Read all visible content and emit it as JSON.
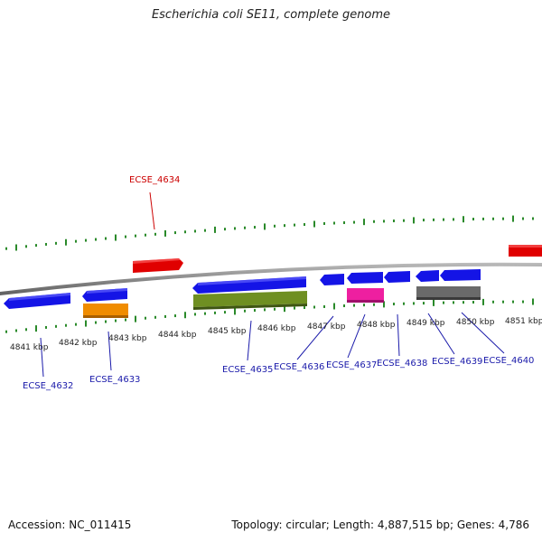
{
  "title": "Escherichia coli SE11, complete genome",
  "footer": {
    "accession": "Accession: NC_011415",
    "summary": "Topology: circular; Length: 4,887,515 bp; Genes: 4,786"
  },
  "colors": {
    "backbone": "#8a8a8a",
    "ticks": "#2a8a2a",
    "cds_forward": "#e00000",
    "cds_reverse": "#1414e6",
    "orange": "#f08c00",
    "olive": "#6f8f22",
    "magenta": "#ee1fa0",
    "gray": "#6a6a6a",
    "label_forward": "#cc0000",
    "label_reverse": "#1a1aaa"
  },
  "axis_labels": [
    "4841 kbp",
    "4842 kbp",
    "4843 kbp",
    "4844 kbp",
    "4845 kbp",
    "4846 kbp",
    "4847 kbp",
    "4848 kbp",
    "4849 kbp",
    "4850 kbp",
    "4851 kbp"
  ],
  "gene_labels": {
    "top": [
      {
        "name": "ECSE_4634"
      }
    ],
    "bottom": [
      {
        "name": "ECSE_4632"
      },
      {
        "name": "ECSE_4633"
      },
      {
        "name": "ECSE_4635"
      },
      {
        "name": "ECSE_4636"
      },
      {
        "name": "ECSE_4637"
      },
      {
        "name": "ECSE_4638"
      },
      {
        "name": "ECSE_4639"
      },
      {
        "name": "ECSE_4640"
      }
    ]
  }
}
